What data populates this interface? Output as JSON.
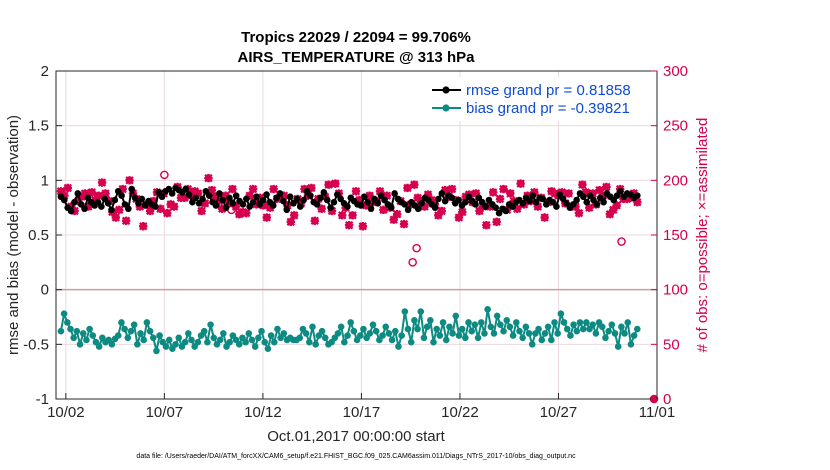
{
  "chart_data": {
    "type": "line",
    "title_line1": "Tropics 22029 / 22094 = 99.706%",
    "title_line2": "AIRS_TEMPERATURE @ 313 hPa",
    "ylabel_left": "rmse and bias (model - observation)",
    "ylabel_right": "# of obs: o=possible; ×=assimilated",
    "xlabel": "Oct.01,2017 00:00:00 start",
    "footnote": "data file: /Users/raeder/DAI/ATM_forcXX/CAM6_setup/f.e21.FHIST_BGC.f09_025.CAM6assim.011/Diags_NTrS_2017-10/obs_diag_output.nc",
    "ylim_left": [
      -1,
      2
    ],
    "ylim_right": [
      0,
      300
    ],
    "xlim_days": [
      0.5,
      31.0
    ],
    "yticks_left": [
      {
        "value": -1,
        "label": "-1"
      },
      {
        "value": -0.5,
        "label": "-0.5"
      },
      {
        "value": 0,
        "label": "0"
      },
      {
        "value": 0.5,
        "label": "0.5"
      },
      {
        "value": 1,
        "label": "1"
      },
      {
        "value": 1.5,
        "label": "1.5"
      },
      {
        "value": 2,
        "label": "2"
      }
    ],
    "yticks_right": [
      {
        "value": 0,
        "label": "0"
      },
      {
        "value": 50,
        "label": "50"
      },
      {
        "value": 100,
        "label": "100"
      },
      {
        "value": 150,
        "label": "150"
      },
      {
        "value": 200,
        "label": "200"
      },
      {
        "value": 250,
        "label": "250"
      },
      {
        "value": 300,
        "label": "300"
      }
    ],
    "xticks": [
      {
        "value": 1,
        "label": "10/02"
      },
      {
        "value": 6,
        "label": "10/07"
      },
      {
        "value": 11,
        "label": "10/12"
      },
      {
        "value": 16,
        "label": "10/17"
      },
      {
        "value": 21,
        "label": "10/22"
      },
      {
        "value": 26,
        "label": "10/27"
      },
      {
        "value": 31,
        "label": "11/01"
      }
    ],
    "colors": {
      "rmse": "#000000",
      "bias": "#0d8a82",
      "obs": "#d6004f",
      "zero_line": "#c9a0a0",
      "grid": "#ebd9df",
      "legend_text": "#0b4bd6"
    },
    "series": [
      {
        "name": "rmse grand pr = 0.81858",
        "axis": "left",
        "values": [
          0.85,
          0.82,
          0.75,
          0.72,
          0.8,
          0.88,
          0.78,
          0.74,
          0.84,
          0.8,
          0.77,
          0.8,
          0.76,
          0.83,
          0.79,
          0.73,
          0.82,
          0.9,
          0.86,
          0.78,
          0.74,
          0.92,
          0.84,
          0.79,
          0.83,
          0.77,
          0.81,
          0.78,
          0.76,
          0.89,
          0.85,
          0.9,
          0.92,
          0.88,
          0.93,
          0.91,
          0.89,
          0.92,
          0.87,
          0.8,
          0.84,
          0.79,
          0.83,
          0.9,
          0.86,
          0.8,
          0.77,
          0.88,
          0.82,
          0.75,
          0.84,
          0.79,
          0.86,
          0.81,
          0.78,
          0.83,
          0.76,
          0.8,
          0.85,
          0.78,
          0.82,
          0.87,
          0.8,
          0.77,
          0.84,
          0.88,
          0.81,
          0.73,
          0.85,
          0.79,
          0.83,
          0.76,
          0.82,
          0.9,
          0.86,
          0.8,
          0.78,
          0.84,
          0.89,
          0.82,
          0.75,
          0.8,
          0.87,
          0.83,
          0.79,
          0.76,
          0.84,
          0.81,
          0.78,
          0.77,
          0.85,
          0.8,
          0.74,
          0.83,
          0.79,
          0.86,
          0.82,
          0.78,
          0.75,
          0.88,
          0.83,
          0.8,
          0.78,
          0.73,
          0.8,
          0.77,
          0.74,
          0.79,
          0.84,
          0.82,
          0.78,
          0.75,
          0.83,
          0.88,
          0.81,
          0.86,
          0.84,
          0.79,
          0.82,
          0.77,
          0.8,
          0.85,
          0.81,
          0.78,
          0.84,
          0.8,
          0.76,
          0.82,
          0.78,
          0.75,
          0.7,
          0.74,
          0.72,
          0.78,
          0.76,
          0.8,
          0.82,
          0.79,
          0.84,
          0.81,
          0.86,
          0.8,
          0.84,
          0.83,
          0.78,
          0.82,
          0.8,
          0.76,
          0.87,
          0.83,
          0.79,
          0.75,
          0.78,
          0.82,
          0.88,
          0.85,
          0.8,
          0.86,
          0.82,
          0.78,
          0.84,
          0.8,
          0.88,
          0.85,
          0.82,
          0.86,
          0.9,
          0.85,
          0.88,
          0.87,
          0.84,
          0.86
        ]
      },
      {
        "name": "bias grand pr = -0.39821",
        "axis": "left",
        "values": [
          -0.38,
          -0.22,
          -0.3,
          -0.36,
          -0.44,
          -0.38,
          -0.5,
          -0.4,
          -0.46,
          -0.36,
          -0.42,
          -0.48,
          -0.52,
          -0.44,
          -0.48,
          -0.46,
          -0.5,
          -0.45,
          -0.42,
          -0.3,
          -0.36,
          -0.44,
          -0.38,
          -0.32,
          -0.5,
          -0.4,
          -0.46,
          -0.3,
          -0.38,
          -0.44,
          -0.56,
          -0.42,
          -0.48,
          -0.52,
          -0.46,
          -0.54,
          -0.5,
          -0.44,
          -0.52,
          -0.48,
          -0.4,
          -0.46,
          -0.52,
          -0.48,
          -0.42,
          -0.38,
          -0.48,
          -0.32,
          -0.44,
          -0.5,
          -0.46,
          -0.4,
          -0.52,
          -0.48,
          -0.42,
          -0.46,
          -0.5,
          -0.44,
          -0.48,
          -0.4,
          -0.46,
          -0.52,
          -0.44,
          -0.38,
          -0.48,
          -0.54,
          -0.42,
          -0.48,
          -0.36,
          -0.44,
          -0.4,
          -0.46,
          -0.44,
          -0.46,
          -0.46,
          -0.44,
          -0.36,
          -0.4,
          -0.48,
          -0.34,
          -0.5,
          -0.42,
          -0.38,
          -0.44,
          -0.5,
          -0.48,
          -0.44,
          -0.4,
          -0.34,
          -0.48,
          -0.42,
          -0.3,
          -0.38,
          -0.46,
          -0.42,
          -0.36,
          -0.44,
          -0.4,
          -0.32,
          -0.38,
          -0.46,
          -0.42,
          -0.34,
          -0.4,
          -0.46,
          -0.38,
          -0.52,
          -0.42,
          -0.2,
          -0.36,
          -0.48,
          -0.28,
          -0.36,
          -0.2,
          -0.44,
          -0.34,
          -0.28,
          -0.48,
          -0.36,
          -0.42,
          -0.3,
          -0.46,
          -0.34,
          -0.4,
          -0.24,
          -0.42,
          -0.36,
          -0.44,
          -0.3,
          -0.38,
          -0.32,
          -0.44,
          -0.3,
          -0.4,
          -0.18,
          -0.34,
          -0.4,
          -0.24,
          -0.32,
          -0.38,
          -0.28,
          -0.34,
          -0.42,
          -0.3,
          -0.38,
          -0.44,
          -0.34,
          -0.4,
          -0.5,
          -0.4,
          -0.36,
          -0.46,
          -0.4,
          -0.34,
          -0.46,
          -0.3,
          -0.4,
          -0.22,
          -0.3,
          -0.36,
          -0.42,
          -0.32,
          -0.38,
          -0.3,
          -0.36,
          -0.3,
          -0.36,
          -0.32,
          -0.4,
          -0.3,
          -0.34,
          -0.44,
          -0.38,
          -0.32,
          -0.4,
          -0.52,
          -0.34,
          -0.4,
          -0.3,
          -0.5,
          -0.42,
          -0.36
        ]
      },
      {
        "name": "obs possible",
        "axis": "right",
        "values": [
          190,
          186,
          193,
          176,
          172,
          181,
          185,
          188,
          176,
          189,
          182,
          186,
          198,
          188,
          181,
          171,
          166,
          173,
          192,
          163,
          200,
          188,
          183,
          176,
          158,
          178,
          172,
          181,
          189,
          174,
          188,
          170,
          178,
          176,
          194,
          184,
          184,
          192,
          186,
          190,
          188,
          172,
          179,
          202,
          191,
          185,
          181,
          174,
          186,
          180,
          192,
          176,
          169,
          171,
          170,
          186,
          192,
          178,
          184,
          177,
          166,
          175,
          192,
          183,
          185,
          186,
          177,
          162,
          168,
          183,
          179,
          192,
          186,
          193,
          163,
          183,
          174,
          185,
          196,
          172,
          197,
          188,
          168,
          175,
          159,
          168,
          190,
          182,
          158,
          177,
          186,
          180,
          181,
          190,
          173,
          186,
          175,
          164,
          169,
          181,
          160,
          193,
          178,
          196,
          184,
          180,
          176,
          187,
          182,
          178,
          168,
          172,
          191,
          185,
          192,
          182,
          166,
          171,
          185,
          187,
          180,
          188,
          172,
          176,
          159,
          176,
          189,
          162,
          183,
          192,
          173,
          188,
          181,
          174,
          197,
          178,
          186,
          181,
          189,
          176,
          184,
          166,
          180,
          190,
          188,
          186,
          189,
          179,
          188,
          176,
          176,
          170,
          196,
          189,
          175,
          188,
          178,
          191,
          186,
          194,
          169,
          173,
          177,
          192,
          183,
          183,
          184,
          188,
          180
        ]
      },
      {
        "name": "obs assimilated",
        "axis": "right",
        "values": [
          190,
          186,
          193,
          176,
          172,
          181,
          185,
          188,
          176,
          189,
          182,
          186,
          198,
          188,
          181,
          171,
          166,
          173,
          192,
          163,
          200,
          188,
          183,
          176,
          158,
          178,
          172,
          181,
          189,
          174,
          188,
          170,
          178,
          176,
          194,
          184,
          184,
          192,
          186,
          190,
          188,
          172,
          179,
          202,
          191,
          185,
          181,
          174,
          186,
          180,
          192,
          176,
          169,
          171,
          170,
          186,
          192,
          178,
          184,
          177,
          166,
          175,
          192,
          183,
          185,
          186,
          177,
          162,
          168,
          183,
          179,
          192,
          186,
          193,
          163,
          183,
          174,
          185,
          196,
          172,
          197,
          188,
          168,
          175,
          159,
          168,
          190,
          182,
          158,
          177,
          186,
          180,
          181,
          190,
          173,
          186,
          175,
          164,
          169,
          181,
          160,
          193,
          178,
          196,
          184,
          180,
          176,
          187,
          182,
          178,
          168,
          172,
          191,
          185,
          192,
          182,
          166,
          171,
          185,
          187,
          180,
          188,
          172,
          176,
          159,
          176,
          189,
          162,
          183,
          192,
          173,
          188,
          181,
          174,
          197,
          178,
          186,
          181,
          189,
          176,
          184,
          166,
          180,
          190,
          188,
          186,
          189,
          179,
          188,
          176,
          176,
          170,
          196,
          189,
          175,
          188,
          178,
          191,
          186,
          194,
          169,
          173,
          177,
          192,
          183,
          183,
          184,
          188,
          180
        ]
      }
    ],
    "extra_obs_points": [
      {
        "day": 6.0,
        "possible": 205
      },
      {
        "day": 9.4,
        "possible": 173
      },
      {
        "day": 18.6,
        "possible": 125
      },
      {
        "day": 18.8,
        "possible": 138
      },
      {
        "day": 29.2,
        "possible": 144
      },
      {
        "day": 30.85,
        "possible": 0
      }
    ]
  }
}
